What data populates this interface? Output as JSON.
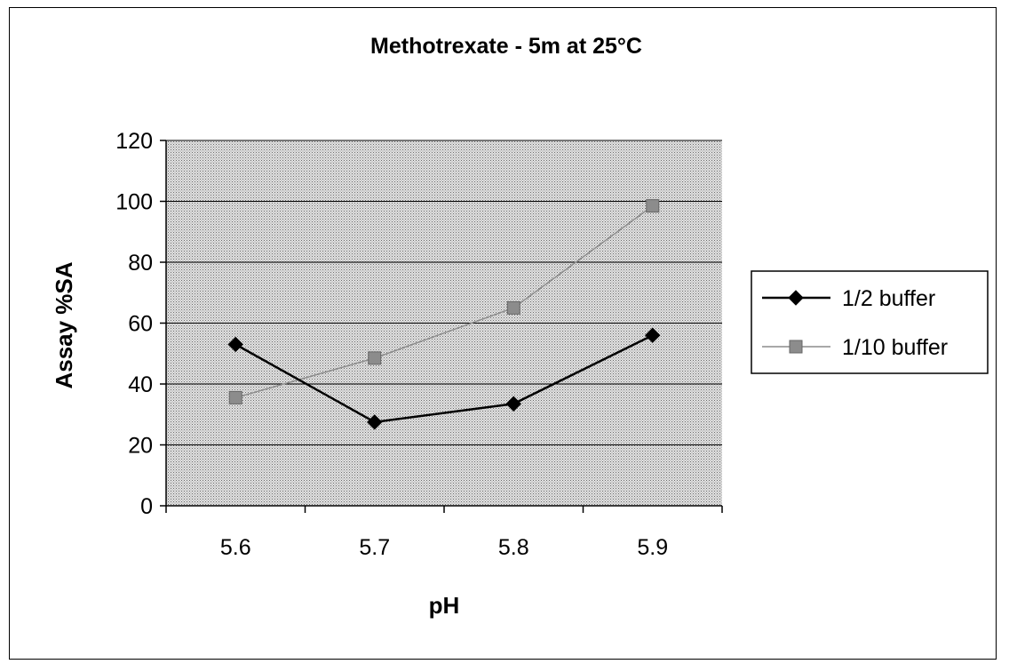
{
  "chart_data": {
    "type": "line",
    "title": "Methotrexate - 5m at 25°C",
    "xlabel": "pH",
    "ylabel": "Assay %SA",
    "categories": [
      "5.6",
      "5.7",
      "5.8",
      "5.9"
    ],
    "ylim": [
      0,
      120
    ],
    "yticks": [
      0,
      20,
      40,
      60,
      80,
      100,
      120
    ],
    "grid": "horizontal",
    "legend_position": "right",
    "plot_background": "#d4d4d4",
    "series": [
      {
        "name": "1/2 buffer",
        "values": [
          53,
          27.5,
          33.5,
          56
        ],
        "color": "#000000",
        "marker": "diamond"
      },
      {
        "name": "1/10 buffer",
        "values": [
          35.5,
          48.5,
          65,
          98.5
        ],
        "color": "#8c8c8c",
        "marker": "square"
      }
    ]
  }
}
